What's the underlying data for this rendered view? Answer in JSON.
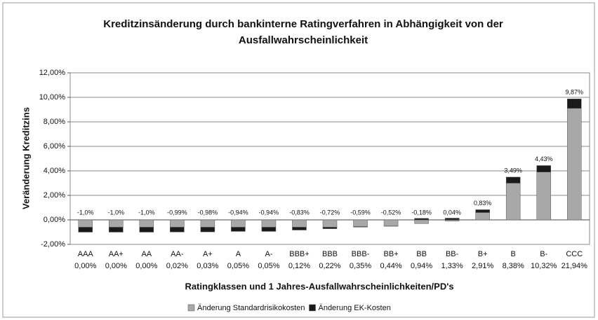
{
  "chart_data": {
    "type": "stacked_bar",
    "title": [
      "Kreditzinsänderung durch bankinterne Ratingverfahren in Abhängigkeit von der",
      "Ausfallwahrscheinlichkeit"
    ],
    "y_label": "Veränderung Kreditzins",
    "x_label": "Ratingklassen und 1 Jahres-Ausfallwahrscheinlichkeiten/PD's",
    "categories": [
      "AAA",
      "AA+",
      "AA",
      "AA-",
      "A+",
      "A",
      "A-",
      "BBB+",
      "BBB",
      "BBB-",
      "BB+",
      "BB",
      "BB-",
      "B+",
      "B",
      "B-",
      "CCC"
    ],
    "pd_labels": [
      "0,00%",
      "0,00%",
      "0,00%",
      "0,02%",
      "0,03%",
      "0,05%",
      "0,05%",
      "0,12%",
      "0,22%",
      "0,35%",
      "0,44%",
      "0,94%",
      "1,33%",
      "2,91%",
      "8,38%",
      "10,32%",
      "21,94%"
    ],
    "series": [
      {
        "name": "Änderung Standardrisikokosten",
        "color": "#a8a8a8",
        "values": [
          -0.6,
          -0.6,
          -0.6,
          -0.6,
          -0.6,
          -0.6,
          -0.6,
          -0.6,
          -0.6,
          -0.55,
          -0.5,
          -0.3,
          -0.1,
          0.6,
          3.0,
          3.9,
          9.1
        ]
      },
      {
        "name": "Änderung EK-Kosten",
        "color": "#1a1a1a",
        "values": [
          -0.4,
          -0.4,
          -0.4,
          -0.39,
          -0.38,
          -0.34,
          -0.34,
          -0.23,
          -0.12,
          -0.04,
          -0.02,
          0.12,
          0.14,
          0.23,
          0.49,
          0.53,
          0.77
        ]
      }
    ],
    "totals": [
      -1.0,
      -1.0,
      -1.0,
      -0.99,
      -0.98,
      -0.94,
      -0.94,
      -0.83,
      -0.72,
      -0.59,
      -0.52,
      -0.18,
      0.04,
      0.83,
      3.49,
      4.43,
      9.87
    ],
    "total_labels": [
      "-1,0%",
      "-1,0%",
      "-1,0%",
      "-0,99%",
      "-0,98%",
      "-0,94%",
      "-0,94%",
      "-0,83%",
      "-0,72%",
      "-0,59%",
      "-0,52%",
      "-0,18%",
      "0,04%",
      "0,83%",
      "3,49%",
      "4,43%",
      "9,87%"
    ],
    "ylim": [
      -2,
      12
    ],
    "yticks": [
      {
        "value": -2,
        "label": "-2,00%"
      },
      {
        "value": 0,
        "label": "0,00%"
      },
      {
        "value": 2,
        "label": "2,00%"
      },
      {
        "value": 4,
        "label": "4,00%"
      },
      {
        "value": 6,
        "label": "6,00%"
      },
      {
        "value": 8,
        "label": "8,00%"
      },
      {
        "value": 10,
        "label": "10,00%"
      },
      {
        "value": 12,
        "label": "12,00%"
      }
    ],
    "grid": true,
    "legend": "bottom"
  }
}
